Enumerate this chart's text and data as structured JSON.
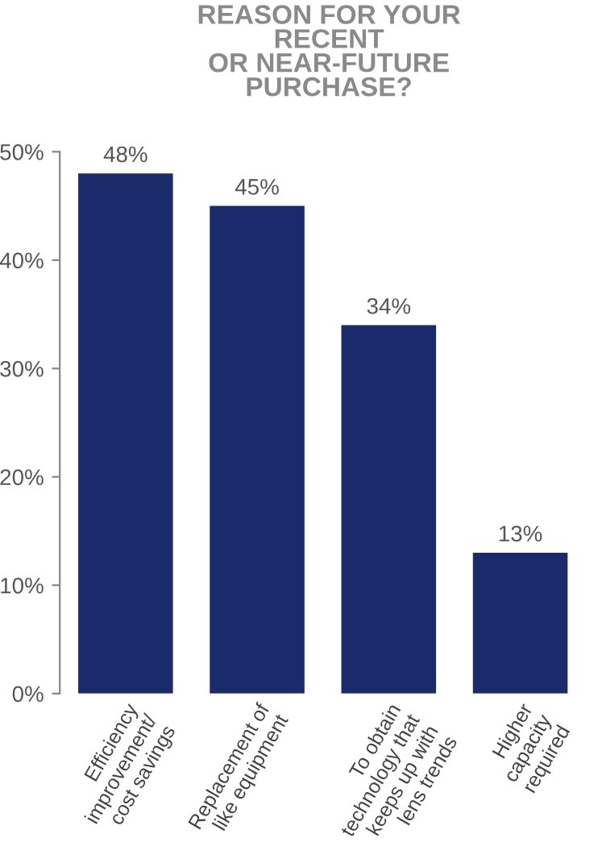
{
  "chart_data": {
    "type": "bar",
    "title": "REASON FOR YOUR\nRECENT\nOR NEAR-FUTURE\nPURCHASE?",
    "categories": [
      "Efficiency\nimprovement/\ncost savings",
      "Replacement of\nlike equipment",
      "To obtain\ntechnology that\nkeeps up with\nlens trends",
      "Higher\ncapacity\nrequired"
    ],
    "values": [
      48,
      45,
      34,
      13
    ],
    "value_labels": [
      "48%",
      "45%",
      "34%",
      "13%"
    ],
    "color": "#1b2a6b",
    "ylim": [
      0,
      50
    ],
    "yticks": [
      {
        "value": 0,
        "label": "0%"
      },
      {
        "value": 10,
        "label": "10%"
      },
      {
        "value": 20,
        "label": "20%"
      },
      {
        "value": 30,
        "label": "30%"
      },
      {
        "value": 40,
        "label": "40%"
      },
      {
        "value": 50,
        "label": "50%"
      }
    ],
    "grid": false
  }
}
